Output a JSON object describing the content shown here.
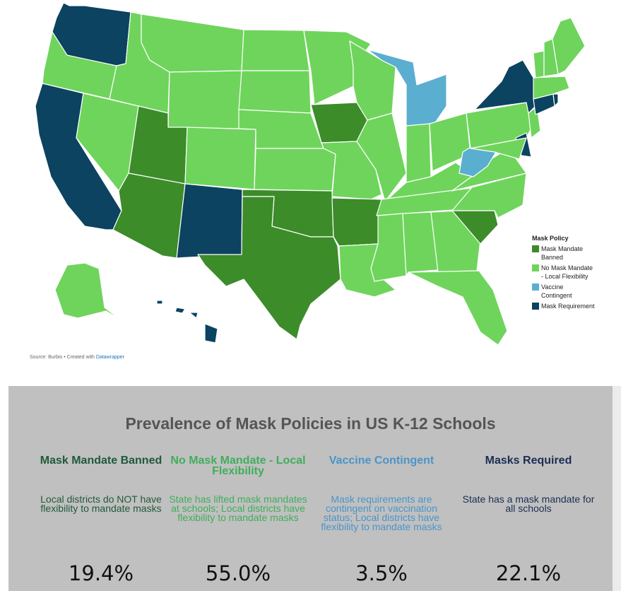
{
  "legend": {
    "title": "Mask Policy",
    "items": [
      {
        "label": "Mask Mandate Banned",
        "color": "#3c8c2a"
      },
      {
        "label": "No Mask Mandate - Local Flexibility",
        "color": "#6fd45c"
      },
      {
        "label": "Vaccine Contingent",
        "color": "#5aaed0"
      },
      {
        "label": "Mask Requirement",
        "color": "#0b4360"
      }
    ]
  },
  "source": {
    "text": "Source: Burbio • Created with ",
    "link": "Datawrapper"
  },
  "summary": {
    "title": "Prevalence of Mask Policies in US K-12 Schools",
    "columns": [
      {
        "heading": "Mask Mandate Banned",
        "description": "Local districts do NOT have flexibility to mandate masks",
        "percent": "19.4%",
        "color": "#1f5a3a"
      },
      {
        "heading": "No Mask Mandate - Local Flexibility",
        "description": "State has lifted mask mandates at schools; Local districts have flexibility to mandate masks",
        "percent": "55.0%",
        "color": "#3fae5a"
      },
      {
        "heading": "Vaccine Contingent",
        "description": "Mask requirements are contingent on vaccination status; Local districts have flexibility to mandate masks",
        "percent": "3.5%",
        "color": "#4a94c8"
      },
      {
        "heading": "Masks Required",
        "description": "State has a mask mandate for all schools",
        "percent": "22.1%",
        "color": "#1c2d54"
      }
    ]
  },
  "map": {
    "states": [
      {
        "name": "Washington",
        "policy": "Mask Requirement"
      },
      {
        "name": "Oregon",
        "policy": "No Mask Mandate - Local Flexibility"
      },
      {
        "name": "California",
        "policy": "Mask Requirement"
      },
      {
        "name": "Nevada",
        "policy": "No Mask Mandate - Local Flexibility"
      },
      {
        "name": "Idaho",
        "policy": "No Mask Mandate - Local Flexibility"
      },
      {
        "name": "Montana",
        "policy": "No Mask Mandate - Local Flexibility"
      },
      {
        "name": "Wyoming",
        "policy": "No Mask Mandate - Local Flexibility"
      },
      {
        "name": "Utah",
        "policy": "Mask Mandate Banned"
      },
      {
        "name": "Arizona",
        "policy": "Mask Mandate Banned"
      },
      {
        "name": "Colorado",
        "policy": "No Mask Mandate - Local Flexibility"
      },
      {
        "name": "New Mexico",
        "policy": "Mask Requirement"
      },
      {
        "name": "North Dakota",
        "policy": "No Mask Mandate - Local Flexibility"
      },
      {
        "name": "South Dakota",
        "policy": "No Mask Mandate - Local Flexibility"
      },
      {
        "name": "Nebraska",
        "policy": "No Mask Mandate - Local Flexibility"
      },
      {
        "name": "Kansas",
        "policy": "No Mask Mandate - Local Flexibility"
      },
      {
        "name": "Oklahoma",
        "policy": "Mask Mandate Banned"
      },
      {
        "name": "Texas",
        "policy": "Mask Mandate Banned"
      },
      {
        "name": "Minnesota",
        "policy": "No Mask Mandate - Local Flexibility"
      },
      {
        "name": "Iowa",
        "policy": "Mask Mandate Banned"
      },
      {
        "name": "Missouri",
        "policy": "No Mask Mandate - Local Flexibility"
      },
      {
        "name": "Arkansas",
        "policy": "Mask Mandate Banned"
      },
      {
        "name": "Louisiana",
        "policy": "No Mask Mandate - Local Flexibility"
      },
      {
        "name": "Wisconsin",
        "policy": "No Mask Mandate - Local Flexibility"
      },
      {
        "name": "Illinois",
        "policy": "No Mask Mandate - Local Flexibility"
      },
      {
        "name": "Michigan",
        "policy": "Vaccine Contingent"
      },
      {
        "name": "Indiana",
        "policy": "No Mask Mandate - Local Flexibility"
      },
      {
        "name": "Ohio",
        "policy": "No Mask Mandate - Local Flexibility"
      },
      {
        "name": "Kentucky",
        "policy": "No Mask Mandate - Local Flexibility"
      },
      {
        "name": "Tennessee",
        "policy": "No Mask Mandate - Local Flexibility"
      },
      {
        "name": "Mississippi",
        "policy": "No Mask Mandate - Local Flexibility"
      },
      {
        "name": "Alabama",
        "policy": "No Mask Mandate - Local Flexibility"
      },
      {
        "name": "Georgia",
        "policy": "No Mask Mandate - Local Flexibility"
      },
      {
        "name": "Florida",
        "policy": "No Mask Mandate - Local Flexibility"
      },
      {
        "name": "South Carolina",
        "policy": "Mask Mandate Banned"
      },
      {
        "name": "North Carolina",
        "policy": "No Mask Mandate - Local Flexibility"
      },
      {
        "name": "Virginia",
        "policy": "No Mask Mandate - Local Flexibility"
      },
      {
        "name": "West Virginia",
        "policy": "Vaccine Contingent"
      },
      {
        "name": "Pennsylvania",
        "policy": "No Mask Mandate - Local Flexibility"
      },
      {
        "name": "New York",
        "policy": "Mask Requirement"
      },
      {
        "name": "New Jersey",
        "policy": "No Mask Mandate - Local Flexibility"
      },
      {
        "name": "Delaware",
        "policy": "Mask Requirement"
      },
      {
        "name": "Maryland",
        "policy": "No Mask Mandate - Local Flexibility"
      },
      {
        "name": "Connecticut",
        "policy": "Mask Requirement"
      },
      {
        "name": "Rhode Island",
        "policy": "Mask Requirement"
      },
      {
        "name": "Massachusetts",
        "policy": "No Mask Mandate - Local Flexibility"
      },
      {
        "name": "Vermont",
        "policy": "No Mask Mandate - Local Flexibility"
      },
      {
        "name": "New Hampshire",
        "policy": "No Mask Mandate - Local Flexibility"
      },
      {
        "name": "Maine",
        "policy": "No Mask Mandate - Local Flexibility"
      },
      {
        "name": "Alaska",
        "policy": "No Mask Mandate - Local Flexibility"
      },
      {
        "name": "Hawaii",
        "policy": "Mask Requirement"
      }
    ]
  }
}
